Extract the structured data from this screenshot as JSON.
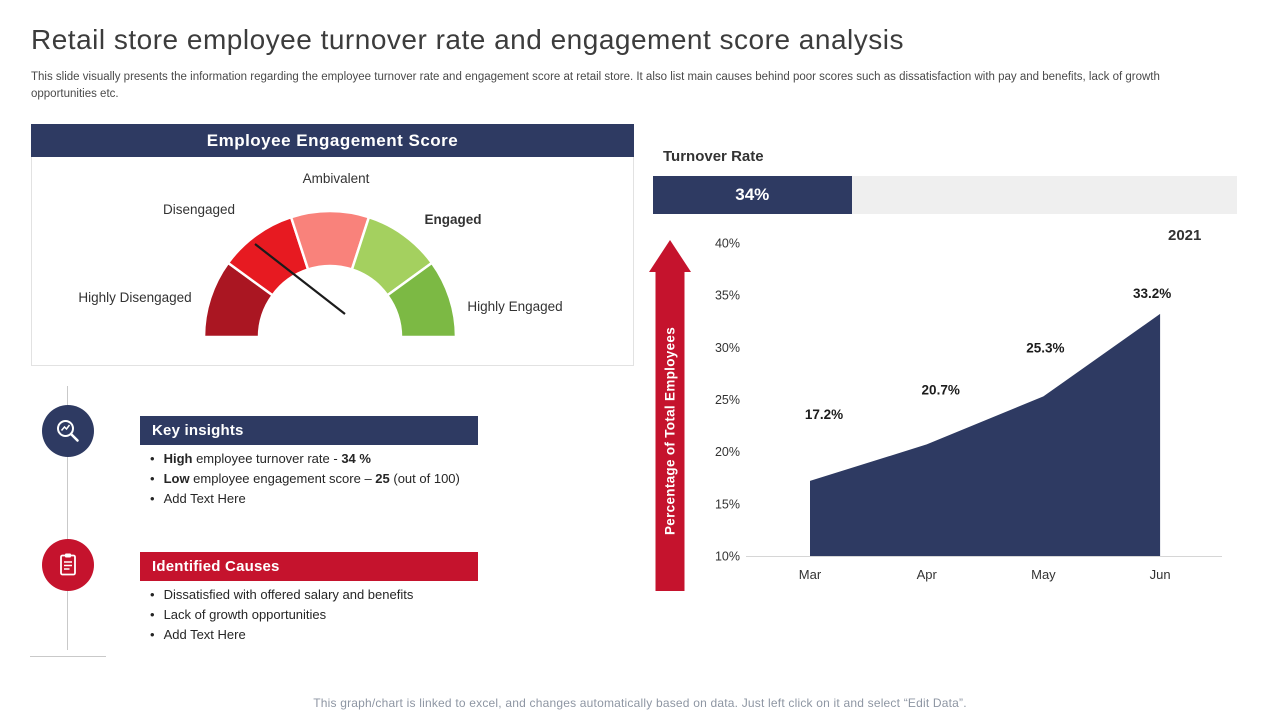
{
  "slide": {
    "title": "Retail store employee turnover rate and engagement score analysis",
    "subtitle": "This slide visually presents the information regarding the employee turnover rate and engagement score at retail store. It also list main causes behind poor scores such as dissatisfaction with pay and benefits, lack of growth opportunities etc.",
    "footer": "This graph/chart is linked to excel, and changes automatically based on data. Just left click on it and select “Edit Data”."
  },
  "colors": {
    "navy": "#2e3a62",
    "red": "#c5132d",
    "bar_track": "#efefef"
  },
  "key_insights": {
    "title": "Key insights",
    "items": [
      {
        "segments": [
          {
            "t": "High",
            "b": true
          },
          {
            "t": " employee turnover rate - ",
            "b": false
          },
          {
            "t": "34 %",
            "b": true
          }
        ]
      },
      {
        "segments": [
          {
            "t": "Low",
            "b": true
          },
          {
            "t": " employee engagement score – ",
            "b": false
          },
          {
            "t": "25",
            "b": true
          },
          {
            "t": " (out of 100)",
            "b": false
          }
        ]
      },
      {
        "segments": [
          {
            "t": "Add Text Here",
            "b": false
          }
        ]
      }
    ]
  },
  "identified_causes": {
    "title": "Identified Causes",
    "items": [
      "Dissatisfied with offered salary and benefits",
      "Lack of growth opportunities",
      "Add Text Here"
    ]
  },
  "chart_data": [
    {
      "type": "gauge",
      "title": "Employee Engagement Score",
      "segments": [
        {
          "label": "Highly Disengaged",
          "color": "#aa1622"
        },
        {
          "label": "Disengaged",
          "color": "#e71a21"
        },
        {
          "label": "Ambivalent",
          "color": "#f9827b"
        },
        {
          "label": "Engaged",
          "color": "#a4d05f"
        },
        {
          "label": "Highly Engaged",
          "color": "#7cb944"
        }
      ],
      "needle_points_to": "Disengaged",
      "value": 25,
      "scale_max": 100
    },
    {
      "type": "bar",
      "title": "Turnover Rate",
      "value": 34,
      "max": 100,
      "label": "34%"
    },
    {
      "type": "area",
      "title": "2021",
      "categories": [
        "Mar",
        "Apr",
        "May",
        "Jun"
      ],
      "values": [
        17.2,
        20.7,
        25.3,
        33.2
      ],
      "value_labels": [
        "17.2%",
        "20.7%",
        "25.3%",
        "33.2%"
      ],
      "ylabel": "Percentage of Total Employees",
      "ylim": [
        10,
        40
      ],
      "ytick_labels": [
        "40%",
        "35%",
        "30%",
        "25%",
        "20%",
        "15%",
        "10%"
      ],
      "fill_color": "#2e3a62",
      "legend": "none",
      "grid": "off"
    }
  ]
}
